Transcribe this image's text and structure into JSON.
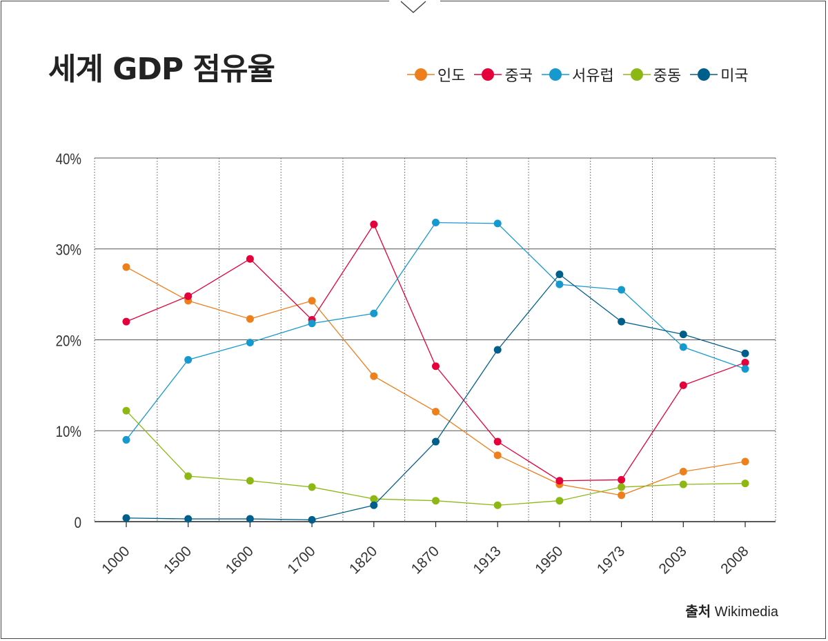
{
  "title": "세계 GDP 점유율",
  "source": {
    "label": "출처",
    "value": "Wikimedia"
  },
  "chart_data": {
    "type": "line",
    "categories": [
      "1000",
      "1500",
      "1600",
      "1700",
      "1820",
      "1870",
      "1913",
      "1950",
      "1973",
      "2003",
      "2008"
    ],
    "ylim": [
      0,
      40
    ],
    "yticks": [
      {
        "value": 0,
        "label": "0"
      },
      {
        "value": 10,
        "label": "10%"
      },
      {
        "value": 20,
        "label": "20%"
      },
      {
        "value": 30,
        "label": "30%"
      },
      {
        "value": 40,
        "label": "40%"
      }
    ],
    "grid": true,
    "legend_position": "top-right",
    "series": [
      {
        "name": "인도",
        "color": "#ee7f1d",
        "values": [
          28.0,
          24.3,
          22.3,
          24.3,
          16.0,
          12.1,
          7.3,
          4.1,
          2.9,
          5.5,
          6.6
        ]
      },
      {
        "name": "중국",
        "color": "#e5003c",
        "values": [
          22.0,
          24.8,
          28.9,
          22.2,
          32.7,
          17.1,
          8.8,
          4.5,
          4.6,
          15.0,
          17.5
        ]
      },
      {
        "name": "서유럽",
        "color": "#1699cf",
        "values": [
          9.0,
          17.8,
          19.7,
          21.8,
          22.9,
          32.9,
          32.8,
          26.1,
          25.5,
          19.2,
          16.8
        ]
      },
      {
        "name": "중동",
        "color": "#8db814",
        "values": [
          12.2,
          5.0,
          4.5,
          3.8,
          2.5,
          2.3,
          1.8,
          2.3,
          3.8,
          4.1,
          4.2
        ]
      },
      {
        "name": "미국",
        "color": "#005e8a",
        "values": [
          0.4,
          0.3,
          0.3,
          0.2,
          1.8,
          8.8,
          18.9,
          27.2,
          22.0,
          20.6,
          18.5
        ]
      }
    ]
  }
}
